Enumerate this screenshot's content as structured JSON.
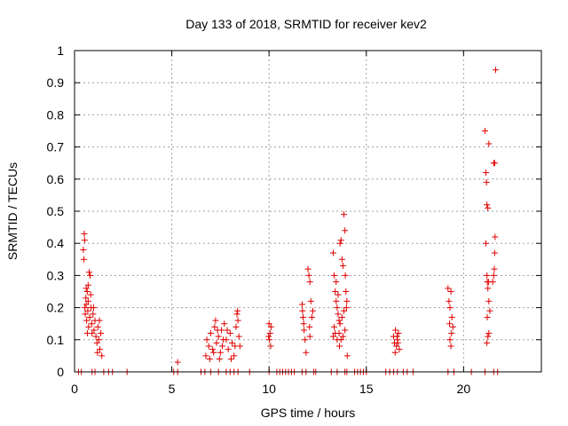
{
  "chart_data": {
    "type": "scatter",
    "title": "Day 133 of 2018, SRMTID for receiver kev2",
    "xlabel": "GPS time / hours",
    "ylabel": "SRMTID / TECUs",
    "xlim": [
      0,
      24
    ],
    "ylim": [
      0,
      1
    ],
    "xticks": [
      0,
      5,
      10,
      15,
      20
    ],
    "xtick_labels": [
      "0",
      "5",
      "10",
      "15",
      "20"
    ],
    "yticks": [
      0,
      0.1,
      0.2,
      0.3,
      0.4,
      0.5,
      0.6,
      0.7,
      0.8,
      0.9,
      1
    ],
    "ytick_labels": [
      "0",
      "0.1",
      "0.2",
      "0.3",
      "0.4",
      "0.5",
      "0.6",
      "0.7",
      "0.8",
      "0.9",
      "1"
    ],
    "grid": true,
    "marker": "+",
    "color": "#e00000",
    "series": [
      {
        "name": "SRMTID",
        "points": [
          [
            0.2,
            0.0
          ],
          [
            0.35,
            0.0
          ],
          [
            0.9,
            0.0
          ],
          [
            1.05,
            0.0
          ],
          [
            1.5,
            0.0
          ],
          [
            1.75,
            0.0
          ],
          [
            1.95,
            0.0
          ],
          [
            2.7,
            0.0
          ],
          [
            5.1,
            0.0
          ],
          [
            5.3,
            0.0
          ],
          [
            6.5,
            0.0
          ],
          [
            6.7,
            0.0
          ],
          [
            7.0,
            0.0
          ],
          [
            7.4,
            0.0
          ],
          [
            7.8,
            0.0
          ],
          [
            8.0,
            0.0
          ],
          [
            8.2,
            0.0
          ],
          [
            8.4,
            0.0
          ],
          [
            9.0,
            0.0
          ],
          [
            10.0,
            0.0
          ],
          [
            10.4,
            0.0
          ],
          [
            10.55,
            0.0
          ],
          [
            10.7,
            0.0
          ],
          [
            10.85,
            0.0
          ],
          [
            11.0,
            0.0
          ],
          [
            11.15,
            0.0
          ],
          [
            11.3,
            0.0
          ],
          [
            11.7,
            0.0
          ],
          [
            11.9,
            0.0
          ],
          [
            12.3,
            0.0
          ],
          [
            12.4,
            0.0
          ],
          [
            13.2,
            0.0
          ],
          [
            13.5,
            0.0
          ],
          [
            13.9,
            0.0
          ],
          [
            14.0,
            0.0
          ],
          [
            14.4,
            0.0
          ],
          [
            14.55,
            0.0
          ],
          [
            14.7,
            0.0
          ],
          [
            14.85,
            0.0
          ],
          [
            15.0,
            0.0
          ],
          [
            16.0,
            0.0
          ],
          [
            16.2,
            0.0
          ],
          [
            16.4,
            0.0
          ],
          [
            16.6,
            0.0
          ],
          [
            16.9,
            0.0
          ],
          [
            17.1,
            0.0
          ],
          [
            17.4,
            0.0
          ],
          [
            19.2,
            0.0
          ],
          [
            19.5,
            0.0
          ],
          [
            20.4,
            0.0
          ],
          [
            21.1,
            0.0
          ],
          [
            21.55,
            0.0
          ],
          [
            21.75,
            0.0
          ],
          [
            5.3,
            0.03
          ],
          [
            0.45,
            0.38
          ],
          [
            0.5,
            0.43
          ],
          [
            0.52,
            0.41
          ],
          [
            0.48,
            0.35
          ],
          [
            0.6,
            0.26
          ],
          [
            0.65,
            0.25
          ],
          [
            0.7,
            0.22
          ],
          [
            0.75,
            0.31
          ],
          [
            0.8,
            0.3
          ],
          [
            0.55,
            0.18
          ],
          [
            0.6,
            0.21
          ],
          [
            0.62,
            0.16
          ],
          [
            0.68,
            0.19
          ],
          [
            0.72,
            0.14
          ],
          [
            0.78,
            0.17
          ],
          [
            0.85,
            0.2
          ],
          [
            0.88,
            0.15
          ],
          [
            0.9,
            0.12
          ],
          [
            0.95,
            0.18
          ],
          [
            1.0,
            0.13
          ],
          [
            1.05,
            0.16
          ],
          [
            1.1,
            0.11
          ],
          [
            1.15,
            0.09
          ],
          [
            1.2,
            0.14
          ],
          [
            1.25,
            0.1
          ],
          [
            1.3,
            0.07
          ],
          [
            1.35,
            0.12
          ],
          [
            1.4,
            0.05
          ],
          [
            1.28,
            0.16
          ],
          [
            0.58,
            0.23
          ],
          [
            0.66,
            0.12
          ],
          [
            0.83,
            0.24
          ],
          [
            0.98,
            0.2
          ],
          [
            1.18,
            0.06
          ],
          [
            0.7,
            0.27
          ],
          [
            0.53,
            0.2
          ],
          [
            6.8,
            0.1
          ],
          [
            6.9,
            0.08
          ],
          [
            7.0,
            0.12
          ],
          [
            7.1,
            0.07
          ],
          [
            7.2,
            0.14
          ],
          [
            7.25,
            0.16
          ],
          [
            7.3,
            0.09
          ],
          [
            7.4,
            0.11
          ],
          [
            7.5,
            0.06
          ],
          [
            7.55,
            0.13
          ],
          [
            7.6,
            0.08
          ],
          [
            7.7,
            0.15
          ],
          [
            7.8,
            0.1
          ],
          [
            7.9,
            0.07
          ],
          [
            8.0,
            0.12
          ],
          [
            8.1,
            0.09
          ],
          [
            8.2,
            0.05
          ],
          [
            8.3,
            0.14
          ],
          [
            8.35,
            0.18
          ],
          [
            8.4,
            0.16
          ],
          [
            8.45,
            0.11
          ],
          [
            8.5,
            0.08
          ],
          [
            6.75,
            0.05
          ],
          [
            6.95,
            0.04
          ],
          [
            7.15,
            0.06
          ],
          [
            7.35,
            0.13
          ],
          [
            7.45,
            0.04
          ],
          [
            7.65,
            0.1
          ],
          [
            7.85,
            0.13
          ],
          [
            8.05,
            0.04
          ],
          [
            8.25,
            0.08
          ],
          [
            8.38,
            0.19
          ],
          [
            10.0,
            0.15
          ],
          [
            10.02,
            0.1
          ],
          [
            10.05,
            0.12
          ],
          [
            10.08,
            0.08
          ],
          [
            10.1,
            0.14
          ],
          [
            9.98,
            0.11
          ],
          [
            11.7,
            0.21
          ],
          [
            11.75,
            0.17
          ],
          [
            11.8,
            0.13
          ],
          [
            11.85,
            0.1
          ],
          [
            11.9,
            0.06
          ],
          [
            11.72,
            0.19
          ],
          [
            11.78,
            0.15
          ],
          [
            12.0,
            0.32
          ],
          [
            12.05,
            0.3
          ],
          [
            12.1,
            0.28
          ],
          [
            12.15,
            0.22
          ],
          [
            12.2,
            0.17
          ],
          [
            12.25,
            0.19
          ],
          [
            12.1,
            0.11
          ],
          [
            12.08,
            0.14
          ],
          [
            13.3,
            0.37
          ],
          [
            13.35,
            0.3
          ],
          [
            13.4,
            0.25
          ],
          [
            13.45,
            0.22
          ],
          [
            13.5,
            0.2
          ],
          [
            13.55,
            0.18
          ],
          [
            13.6,
            0.16
          ],
          [
            13.65,
            0.4
          ],
          [
            13.7,
            0.41
          ],
          [
            13.75,
            0.35
          ],
          [
            13.8,
            0.33
          ],
          [
            13.85,
            0.49
          ],
          [
            13.9,
            0.44
          ],
          [
            13.92,
            0.3
          ],
          [
            13.95,
            0.25
          ],
          [
            14.0,
            0.22
          ],
          [
            14.02,
            0.05
          ],
          [
            13.35,
            0.14
          ],
          [
            13.4,
            0.12
          ],
          [
            13.5,
            0.1
          ],
          [
            13.6,
            0.12
          ],
          [
            13.7,
            0.1
          ],
          [
            13.8,
            0.11
          ],
          [
            13.9,
            0.13
          ],
          [
            13.65,
            0.15
          ],
          [
            13.75,
            0.17
          ],
          [
            13.45,
            0.28
          ],
          [
            13.55,
            0.24
          ],
          [
            13.85,
            0.19
          ],
          [
            13.98,
            0.2
          ],
          [
            13.3,
            0.11
          ],
          [
            13.62,
            0.08
          ],
          [
            16.4,
            0.11
          ],
          [
            16.45,
            0.09
          ],
          [
            16.5,
            0.13
          ],
          [
            16.55,
            0.08
          ],
          [
            16.6,
            0.1
          ],
          [
            16.65,
            0.12
          ],
          [
            16.7,
            0.07
          ],
          [
            16.48,
            0.06
          ],
          [
            16.58,
            0.11
          ],
          [
            16.62,
            0.09
          ],
          [
            19.2,
            0.26
          ],
          [
            19.25,
            0.22
          ],
          [
            19.3,
            0.2
          ],
          [
            19.35,
            0.25
          ],
          [
            19.4,
            0.17
          ],
          [
            19.45,
            0.14
          ],
          [
            19.3,
            0.1
          ],
          [
            19.35,
            0.08
          ],
          [
            19.38,
            0.12
          ],
          [
            19.28,
            0.15
          ],
          [
            21.1,
            0.75
          ],
          [
            21.15,
            0.62
          ],
          [
            21.18,
            0.59
          ],
          [
            21.2,
            0.52
          ],
          [
            21.25,
            0.51
          ],
          [
            21.3,
            0.71
          ],
          [
            21.15,
            0.4
          ],
          [
            21.2,
            0.3
          ],
          [
            21.22,
            0.28
          ],
          [
            21.25,
            0.26
          ],
          [
            21.3,
            0.22
          ],
          [
            21.35,
            0.19
          ],
          [
            21.25,
            0.11
          ],
          [
            21.3,
            0.12
          ],
          [
            21.2,
            0.09
          ],
          [
            21.55,
            0.65
          ],
          [
            21.6,
            0.65
          ],
          [
            21.62,
            0.42
          ],
          [
            21.6,
            0.37
          ],
          [
            21.55,
            0.3
          ],
          [
            21.5,
            0.28
          ],
          [
            21.58,
            0.32
          ],
          [
            21.65,
            0.94
          ],
          [
            21.28,
            0.28
          ],
          [
            21.22,
            0.17
          ]
        ]
      }
    ]
  }
}
